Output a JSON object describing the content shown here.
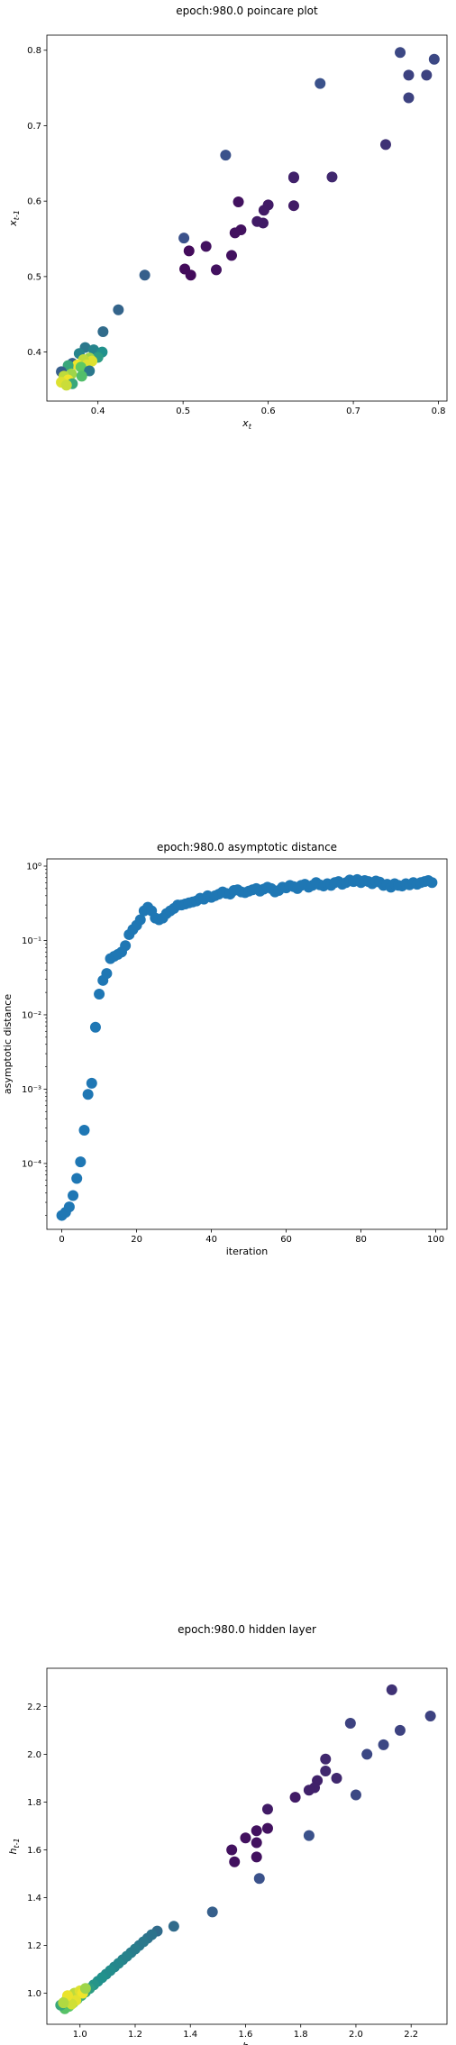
{
  "chart_data": [
    {
      "type": "scatter",
      "title": "epoch:980.0 poincare plot",
      "xlabel": "x_t",
      "ylabel": "x_{t-1}",
      "xlim": [
        0.34,
        0.81
      ],
      "ylim": [
        0.335,
        0.82
      ],
      "x_ticks": [
        0.4,
        0.5,
        0.6,
        0.7,
        0.8
      ],
      "y_ticks": [
        0.4,
        0.5,
        0.6,
        0.7,
        0.8
      ],
      "x_tick_labels": [
        "0.4",
        "0.5",
        "0.6",
        "0.7",
        "0.8"
      ],
      "y_tick_labels": [
        "0.4",
        "0.5",
        "0.6",
        "0.7",
        "0.8"
      ],
      "colormap": "viridis",
      "colormap_stops": [
        "#440154",
        "#3b528b",
        "#21918c",
        "#5ec962",
        "#fde725"
      ],
      "grid": false,
      "points": [
        {
          "x": 0.755,
          "y": 0.797,
          "c": 0.22
        },
        {
          "x": 0.795,
          "y": 0.788,
          "c": 0.22
        },
        {
          "x": 0.765,
          "y": 0.767,
          "c": 0.2
        },
        {
          "x": 0.786,
          "y": 0.767,
          "c": 0.2
        },
        {
          "x": 0.765,
          "y": 0.737,
          "c": 0.2
        },
        {
          "x": 0.661,
          "y": 0.756,
          "c": 0.25
        },
        {
          "x": 0.738,
          "y": 0.675,
          "c": 0.15
        },
        {
          "x": 0.55,
          "y": 0.661,
          "c": 0.25
        },
        {
          "x": 0.675,
          "y": 0.632,
          "c": 0.12
        },
        {
          "x": 0.63,
          "y": 0.632,
          "c": 0.12
        },
        {
          "x": 0.63,
          "y": 0.631,
          "c": 0.1
        },
        {
          "x": 0.6,
          "y": 0.595,
          "c": 0.08
        },
        {
          "x": 0.595,
          "y": 0.588,
          "c": 0.08
        },
        {
          "x": 0.565,
          "y": 0.599,
          "c": 0.05
        },
        {
          "x": 0.63,
          "y": 0.594,
          "c": 0.08
        },
        {
          "x": 0.594,
          "y": 0.571,
          "c": 0.08
        },
        {
          "x": 0.587,
          "y": 0.573,
          "c": 0.08
        },
        {
          "x": 0.568,
          "y": 0.562,
          "c": 0.05
        },
        {
          "x": 0.561,
          "y": 0.558,
          "c": 0.05
        },
        {
          "x": 0.501,
          "y": 0.551,
          "c": 0.25
        },
        {
          "x": 0.527,
          "y": 0.54,
          "c": 0.05
        },
        {
          "x": 0.507,
          "y": 0.534,
          "c": 0.03
        },
        {
          "x": 0.557,
          "y": 0.528,
          "c": 0.05
        },
        {
          "x": 0.539,
          "y": 0.509,
          "c": 0.05
        },
        {
          "x": 0.502,
          "y": 0.51,
          "c": 0.03
        },
        {
          "x": 0.509,
          "y": 0.502,
          "c": 0.03
        },
        {
          "x": 0.455,
          "y": 0.502,
          "c": 0.3
        },
        {
          "x": 0.424,
          "y": 0.456,
          "c": 0.32
        },
        {
          "x": 0.406,
          "y": 0.427,
          "c": 0.35
        },
        {
          "x": 0.385,
          "y": 0.406,
          "c": 0.4
        },
        {
          "x": 0.395,
          "y": 0.403,
          "c": 0.45
        },
        {
          "x": 0.405,
          "y": 0.4,
          "c": 0.5
        },
        {
          "x": 0.378,
          "y": 0.398,
          "c": 0.45
        },
        {
          "x": 0.4,
          "y": 0.393,
          "c": 0.55
        },
        {
          "x": 0.39,
          "y": 0.392,
          "c": 0.85
        },
        {
          "x": 0.393,
          "y": 0.388,
          "c": 0.95
        },
        {
          "x": 0.383,
          "y": 0.39,
          "c": 0.9
        },
        {
          "x": 0.37,
          "y": 0.385,
          "c": 0.3
        },
        {
          "x": 0.387,
          "y": 0.383,
          "c": 0.95
        },
        {
          "x": 0.376,
          "y": 0.383,
          "c": 0.98
        },
        {
          "x": 0.365,
          "y": 0.382,
          "c": 0.6
        },
        {
          "x": 0.38,
          "y": 0.38,
          "c": 0.75
        },
        {
          "x": 0.357,
          "y": 0.374,
          "c": 0.3
        },
        {
          "x": 0.39,
          "y": 0.375,
          "c": 0.4
        },
        {
          "x": 0.369,
          "y": 0.371,
          "c": 0.85
        },
        {
          "x": 0.36,
          "y": 0.368,
          "c": 0.9
        },
        {
          "x": 0.381,
          "y": 0.368,
          "c": 0.7
        },
        {
          "x": 0.365,
          "y": 0.363,
          "c": 0.98
        },
        {
          "x": 0.357,
          "y": 0.36,
          "c": 0.95
        },
        {
          "x": 0.37,
          "y": 0.358,
          "c": 0.6
        },
        {
          "x": 0.363,
          "y": 0.356,
          "c": 0.92
        }
      ]
    },
    {
      "type": "scatter",
      "title": "epoch:980.0 asymptotic distance",
      "xlabel": "iteration",
      "ylabel": "asymptotic distance",
      "yscale": "log",
      "xlim": [
        -4,
        103
      ],
      "ylim": [
        1.3e-05,
        1.25
      ],
      "x_ticks": [
        0,
        20,
        40,
        60,
        80,
        100
      ],
      "x_tick_labels": [
        "0",
        "20",
        "40",
        "60",
        "80",
        "100"
      ],
      "y_ticks": [
        0.0001,
        0.001,
        0.01,
        0.1,
        1
      ],
      "y_tick_labels": [
        "10⁻⁴",
        "10⁻³",
        "10⁻²",
        "10⁻¹",
        "10⁰"
      ],
      "color": "#1f77b4",
      "grid": false,
      "x": [
        0,
        1,
        2,
        3,
        4,
        5,
        6,
        7,
        8,
        9,
        10,
        11,
        12,
        13,
        14,
        15,
        16,
        17,
        18,
        19,
        20,
        21,
        22,
        23,
        24,
        25,
        26,
        27,
        28,
        29,
        30,
        31,
        32,
        33,
        34,
        35,
        36,
        37,
        38,
        39,
        40,
        41,
        42,
        43,
        44,
        45,
        46,
        47,
        48,
        49,
        50,
        51,
        52,
        53,
        54,
        55,
        56,
        57,
        58,
        59,
        60,
        61,
        62,
        63,
        64,
        65,
        66,
        67,
        68,
        69,
        70,
        71,
        72,
        73,
        74,
        75,
        76,
        77,
        78,
        79,
        80,
        81,
        82,
        83,
        84,
        85,
        86,
        87,
        88,
        89,
        90,
        91,
        92,
        93,
        94,
        95,
        96,
        97,
        98,
        99
      ],
      "y": [
        2e-05,
        2.2e-05,
        2.6e-05,
        3.7e-05,
        6.3e-05,
        0.000105,
        0.00028,
        0.00085,
        0.0012,
        0.0068,
        0.019,
        0.029,
        0.036,
        0.057,
        0.061,
        0.065,
        0.07,
        0.085,
        0.12,
        0.14,
        0.16,
        0.19,
        0.25,
        0.28,
        0.25,
        0.2,
        0.19,
        0.2,
        0.23,
        0.25,
        0.27,
        0.3,
        0.3,
        0.31,
        0.32,
        0.33,
        0.34,
        0.37,
        0.36,
        0.4,
        0.38,
        0.4,
        0.42,
        0.45,
        0.43,
        0.42,
        0.47,
        0.48,
        0.45,
        0.44,
        0.46,
        0.48,
        0.5,
        0.46,
        0.49,
        0.52,
        0.5,
        0.45,
        0.47,
        0.52,
        0.51,
        0.55,
        0.53,
        0.5,
        0.55,
        0.57,
        0.52,
        0.55,
        0.6,
        0.56,
        0.54,
        0.58,
        0.55,
        0.6,
        0.62,
        0.57,
        0.6,
        0.65,
        0.62,
        0.66,
        0.6,
        0.64,
        0.62,
        0.58,
        0.63,
        0.61,
        0.55,
        0.57,
        0.52,
        0.58,
        0.55,
        0.54,
        0.58,
        0.56,
        0.6,
        0.57,
        0.6,
        0.62,
        0.64,
        0.6
      ]
    },
    {
      "type": "scatter",
      "title": "epoch:980.0 hidden layer",
      "xlabel": "h_t",
      "ylabel": "h_{t-1}",
      "xlim": [
        0.88,
        2.33
      ],
      "ylim": [
        0.87,
        2.36
      ],
      "x_ticks": [
        1.0,
        1.2,
        1.4,
        1.6,
        1.8,
        2.0,
        2.2
      ],
      "y_ticks": [
        1.0,
        1.2,
        1.4,
        1.6,
        1.8,
        2.0,
        2.2
      ],
      "x_tick_labels": [
        "1.0",
        "1.2",
        "1.4",
        "1.6",
        "1.8",
        "2.0",
        "2.2"
      ],
      "y_tick_labels": [
        "1.0",
        "1.2",
        "1.4",
        "1.6",
        "1.8",
        "2.0",
        "2.2"
      ],
      "colormap": "viridis",
      "colormap_stops": [
        "#440154",
        "#3b528b",
        "#21918c",
        "#5ec962",
        "#fde725"
      ],
      "grid": false,
      "points": [
        {
          "x": 2.13,
          "y": 2.27,
          "c": 0.15
        },
        {
          "x": 2.27,
          "y": 2.16,
          "c": 0.2
        },
        {
          "x": 1.98,
          "y": 2.13,
          "c": 0.2
        },
        {
          "x": 2.16,
          "y": 2.1,
          "c": 0.2
        },
        {
          "x": 2.1,
          "y": 2.04,
          "c": 0.22
        },
        {
          "x": 2.04,
          "y": 2.0,
          "c": 0.22
        },
        {
          "x": 1.89,
          "y": 1.98,
          "c": 0.12
        },
        {
          "x": 1.89,
          "y": 1.93,
          "c": 0.12
        },
        {
          "x": 1.86,
          "y": 1.89,
          "c": 0.1
        },
        {
          "x": 1.93,
          "y": 1.9,
          "c": 0.12
        },
        {
          "x": 1.85,
          "y": 1.86,
          "c": 0.1
        },
        {
          "x": 1.83,
          "y": 1.85,
          "c": 0.1
        },
        {
          "x": 2.0,
          "y": 1.83,
          "c": 0.22
        },
        {
          "x": 1.78,
          "y": 1.82,
          "c": 0.08
        },
        {
          "x": 1.68,
          "y": 1.77,
          "c": 0.08
        },
        {
          "x": 1.68,
          "y": 1.69,
          "c": 0.05
        },
        {
          "x": 1.64,
          "y": 1.68,
          "c": 0.05
        },
        {
          "x": 1.6,
          "y": 1.65,
          "c": 0.05
        },
        {
          "x": 1.83,
          "y": 1.66,
          "c": 0.25
        },
        {
          "x": 1.64,
          "y": 1.63,
          "c": 0.05
        },
        {
          "x": 1.55,
          "y": 1.6,
          "c": 0.05
        },
        {
          "x": 1.64,
          "y": 1.57,
          "c": 0.05
        },
        {
          "x": 1.56,
          "y": 1.55,
          "c": 0.05
        },
        {
          "x": 1.65,
          "y": 1.48,
          "c": 0.25
        },
        {
          "x": 1.48,
          "y": 1.34,
          "c": 0.3
        },
        {
          "x": 1.34,
          "y": 1.28,
          "c": 0.35
        },
        {
          "x": 1.28,
          "y": 1.26,
          "c": 0.35
        },
        {
          "x": 1.26,
          "y": 1.245,
          "c": 0.38
        },
        {
          "x": 1.245,
          "y": 1.23,
          "c": 0.38
        },
        {
          "x": 1.23,
          "y": 1.215,
          "c": 0.4
        },
        {
          "x": 1.215,
          "y": 1.2,
          "c": 0.4
        },
        {
          "x": 1.2,
          "y": 1.185,
          "c": 0.42
        },
        {
          "x": 1.185,
          "y": 1.17,
          "c": 0.42
        },
        {
          "x": 1.17,
          "y": 1.155,
          "c": 0.44
        },
        {
          "x": 1.155,
          "y": 1.14,
          "c": 0.44
        },
        {
          "x": 1.14,
          "y": 1.125,
          "c": 0.46
        },
        {
          "x": 1.125,
          "y": 1.11,
          "c": 0.46
        },
        {
          "x": 1.11,
          "y": 1.095,
          "c": 0.48
        },
        {
          "x": 1.095,
          "y": 1.08,
          "c": 0.48
        },
        {
          "x": 1.08,
          "y": 1.065,
          "c": 0.5
        },
        {
          "x": 1.065,
          "y": 1.05,
          "c": 0.5
        },
        {
          "x": 1.05,
          "y": 1.035,
          "c": 0.52
        },
        {
          "x": 1.035,
          "y": 1.02,
          "c": 0.55
        },
        {
          "x": 1.02,
          "y": 1.005,
          "c": 0.58
        },
        {
          "x": 1.005,
          "y": 0.99,
          "c": 0.62
        },
        {
          "x": 0.99,
          "y": 0.975,
          "c": 0.65
        },
        {
          "x": 0.975,
          "y": 0.96,
          "c": 0.7
        },
        {
          "x": 0.96,
          "y": 0.945,
          "c": 0.75
        },
        {
          "x": 0.945,
          "y": 0.935,
          "c": 0.72
        },
        {
          "x": 0.93,
          "y": 0.95,
          "c": 0.6
        },
        {
          "x": 0.95,
          "y": 0.97,
          "c": 0.8
        },
        {
          "x": 0.965,
          "y": 0.985,
          "c": 0.85
        },
        {
          "x": 0.98,
          "y": 1.0,
          "c": 0.9
        },
        {
          "x": 1.0,
          "y": 1.01,
          "c": 0.95
        },
        {
          "x": 1.01,
          "y": 1.0,
          "c": 0.98
        },
        {
          "x": 0.985,
          "y": 0.97,
          "c": 0.96
        },
        {
          "x": 0.97,
          "y": 0.955,
          "c": 0.93
        },
        {
          "x": 1.02,
          "y": 1.02,
          "c": 0.85
        },
        {
          "x": 0.955,
          "y": 0.99,
          "c": 0.97
        },
        {
          "x": 0.94,
          "y": 0.96,
          "c": 0.88
        }
      ]
    }
  ]
}
